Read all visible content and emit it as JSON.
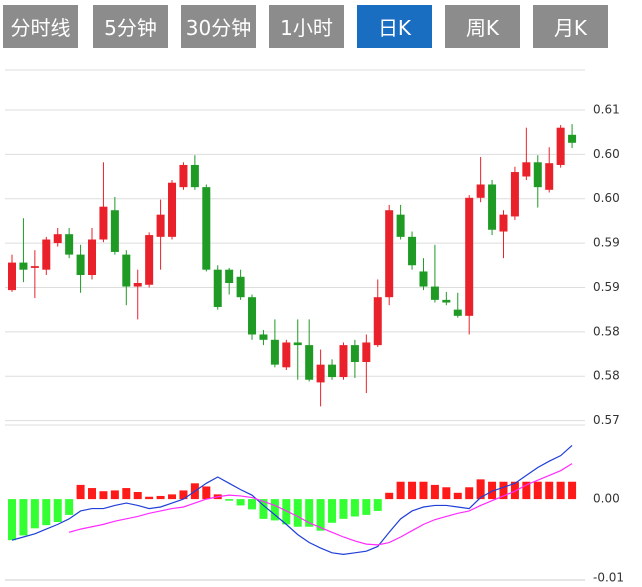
{
  "tabs": [
    "分时线",
    "5分钟",
    "30分钟",
    "1小时",
    "日K",
    "周K",
    "月K"
  ],
  "active_tab": 4,
  "chart_data": [
    {
      "type": "candlestick",
      "up_color": "#e8212a",
      "down_color": "#1f9a25",
      "open": [
        0.5847,
        0.5878,
        0.5872,
        0.587,
        0.59,
        0.591,
        0.5887,
        0.5864,
        0.5904,
        0.5937,
        0.5887,
        0.5851,
        0.5853,
        0.5907,
        0.5907,
        0.5963,
        0.5988,
        0.5963,
        0.587,
        0.587,
        0.5862,
        0.5839,
        0.5797,
        0.5791,
        0.576,
        0.5788,
        0.5785,
        0.5743,
        0.5763,
        0.5749,
        0.5785,
        0.5766,
        0.5785,
        0.5839,
        0.5932,
        0.5907,
        0.5868,
        0.5851,
        0.5836,
        0.5825,
        0.5818,
        0.5951,
        0.5966,
        0.5913,
        0.593,
        0.5975,
        0.5991,
        0.596,
        0.5988,
        0.6022
      ],
      "close": [
        0.5878,
        0.587,
        0.5874,
        0.5904,
        0.591,
        0.5887,
        0.5864,
        0.5904,
        0.5941,
        0.589,
        0.5851,
        0.5855,
        0.5909,
        0.5932,
        0.5968,
        0.5988,
        0.5963,
        0.587,
        0.5828,
        0.5855,
        0.5839,
        0.5797,
        0.5791,
        0.5763,
        0.5788,
        0.5785,
        0.5746,
        0.5763,
        0.5749,
        0.5785,
        0.5766,
        0.5788,
        0.5839,
        0.5937,
        0.5907,
        0.5875,
        0.5851,
        0.5836,
        0.5833,
        0.5818,
        0.5951,
        0.5966,
        0.5915,
        0.5932,
        0.598,
        0.5991,
        0.5963,
        0.599,
        0.603,
        0.6013
      ],
      "high": [
        0.5887,
        0.5928,
        0.5892,
        0.5907,
        0.5917,
        0.5917,
        0.5898,
        0.5917,
        0.5991,
        0.5952,
        0.5892,
        0.587,
        0.5912,
        0.5949,
        0.5971,
        0.5991,
        0.5999,
        0.5966,
        0.5875,
        0.5872,
        0.587,
        0.5842,
        0.5802,
        0.5814,
        0.5791,
        0.5814,
        0.5814,
        0.578,
        0.5769,
        0.5788,
        0.5791,
        0.5797,
        0.5859,
        0.5943,
        0.5943,
        0.5913,
        0.5883,
        0.5898,
        0.5845,
        0.5844,
        0.5954,
        0.5997,
        0.5971,
        0.5937,
        0.5986,
        0.603,
        0.5999,
        0.6008,
        0.6033,
        0.6034
      ],
      "low": [
        0.5845,
        0.5856,
        0.5838,
        0.5864,
        0.5896,
        0.5883,
        0.5844,
        0.5859,
        0.5901,
        0.5887,
        0.583,
        0.5814,
        0.585,
        0.587,
        0.5904,
        0.596,
        0.596,
        0.5868,
        0.5825,
        0.5842,
        0.5836,
        0.5791,
        0.5785,
        0.576,
        0.5757,
        0.5746,
        0.5744,
        0.5716,
        0.5746,
        0.5746,
        0.5748,
        0.5731,
        0.5783,
        0.583,
        0.5904,
        0.587,
        0.5847,
        0.5833,
        0.583,
        0.5816,
        0.5797,
        0.5946,
        0.5909,
        0.5883,
        0.5926,
        0.5971,
        0.594,
        0.5957,
        0.5985,
        0.6007
      ],
      "ylim": [
        0.5695,
        0.6095
      ],
      "yticks": [
        {
          "value": 0.605,
          "label": "0.61"
        },
        {
          "value": 0.6,
          "label": "0.60"
        },
        {
          "value": 0.595,
          "label": "0.60"
        },
        0.59,
        {
          "value": 0.585,
          "label": "0.59"
        },
        0.58,
        {
          "value": 0.575,
          "label": "0.58"
        },
        0.57
      ],
      "grid": true
    },
    {
      "type": "macd",
      "ylim": [
        -0.0105,
        0.0085
      ],
      "yticks": [
        {
          "value": 0,
          "label": "0.00"
        },
        -0.01
      ],
      "grid": false,
      "series": [
        {
          "kind": "bar",
          "pos_color": "#ff1a1a",
          "neg_color": "#33ff33",
          "values": [
            -0.0052,
            -0.0046,
            -0.0037,
            -0.0033,
            -0.0029,
            -0.002,
            0.0018,
            0.0014,
            0.001,
            0.0011,
            0.0014,
            0.0009,
            0.0003,
            0.0004,
            0.0006,
            0.0011,
            0.002,
            0.0016,
            0.0006,
            -0.0002,
            -0.0008,
            -0.0013,
            -0.0025,
            -0.0027,
            -0.0032,
            -0.0035,
            -0.0035,
            -0.004,
            -0.003,
            -0.0025,
            -0.0022,
            -0.002,
            -0.0015,
            0.0008,
            0.0022,
            0.0022,
            0.0022,
            0.0018,
            0.0015,
            0.0008,
            0.0015,
            0.0025,
            0.0022,
            0.0022,
            0.0022,
            0.0022,
            0.0022,
            0.0022,
            0.0022,
            0.0022
          ]
        },
        {
          "kind": "line",
          "color": "#1f3fd8",
          "values": [
            -0.0052,
            -0.0048,
            -0.0044,
            -0.0038,
            -0.0032,
            -0.0025,
            -0.0015,
            -0.0012,
            -0.0012,
            -0.0008,
            -0.0005,
            -0.0008,
            -0.0012,
            -0.001,
            -0.0005,
            0.0,
            0.001,
            0.002,
            0.0028,
            0.002,
            0.0012,
            0.0005,
            -0.0008,
            -0.002,
            -0.0032,
            -0.0045,
            -0.0055,
            -0.0062,
            -0.0068,
            -0.007,
            -0.0068,
            -0.0066,
            -0.006,
            -0.0042,
            -0.0025,
            -0.0015,
            -0.001,
            -0.0008,
            -0.0008,
            -0.001,
            -0.0012,
            0.0002,
            0.001,
            0.0015,
            0.002,
            0.003,
            0.004,
            0.0048,
            0.0055,
            0.0068
          ]
        },
        {
          "kind": "line",
          "color": "#ff2bff",
          "values": [
            null,
            null,
            null,
            null,
            null,
            -0.0042,
            -0.0038,
            -0.0035,
            -0.0032,
            -0.0028,
            -0.0025,
            -0.0022,
            -0.0018,
            -0.0015,
            -0.0012,
            -0.001,
            -0.0005,
            0.0,
            0.0003,
            0.0005,
            0.0004,
            0.0002,
            -0.0003,
            -0.0008,
            -0.0015,
            -0.0022,
            -0.003,
            -0.0036,
            -0.0042,
            -0.0048,
            -0.0053,
            -0.0057,
            -0.0058,
            -0.0055,
            -0.0048,
            -0.004,
            -0.0032,
            -0.0026,
            -0.0022,
            -0.0018,
            -0.0015,
            -0.0008,
            -0.0002,
            0.0004,
            0.001,
            0.0018,
            0.0024,
            0.003,
            0.0036,
            0.0045
          ]
        }
      ]
    }
  ]
}
